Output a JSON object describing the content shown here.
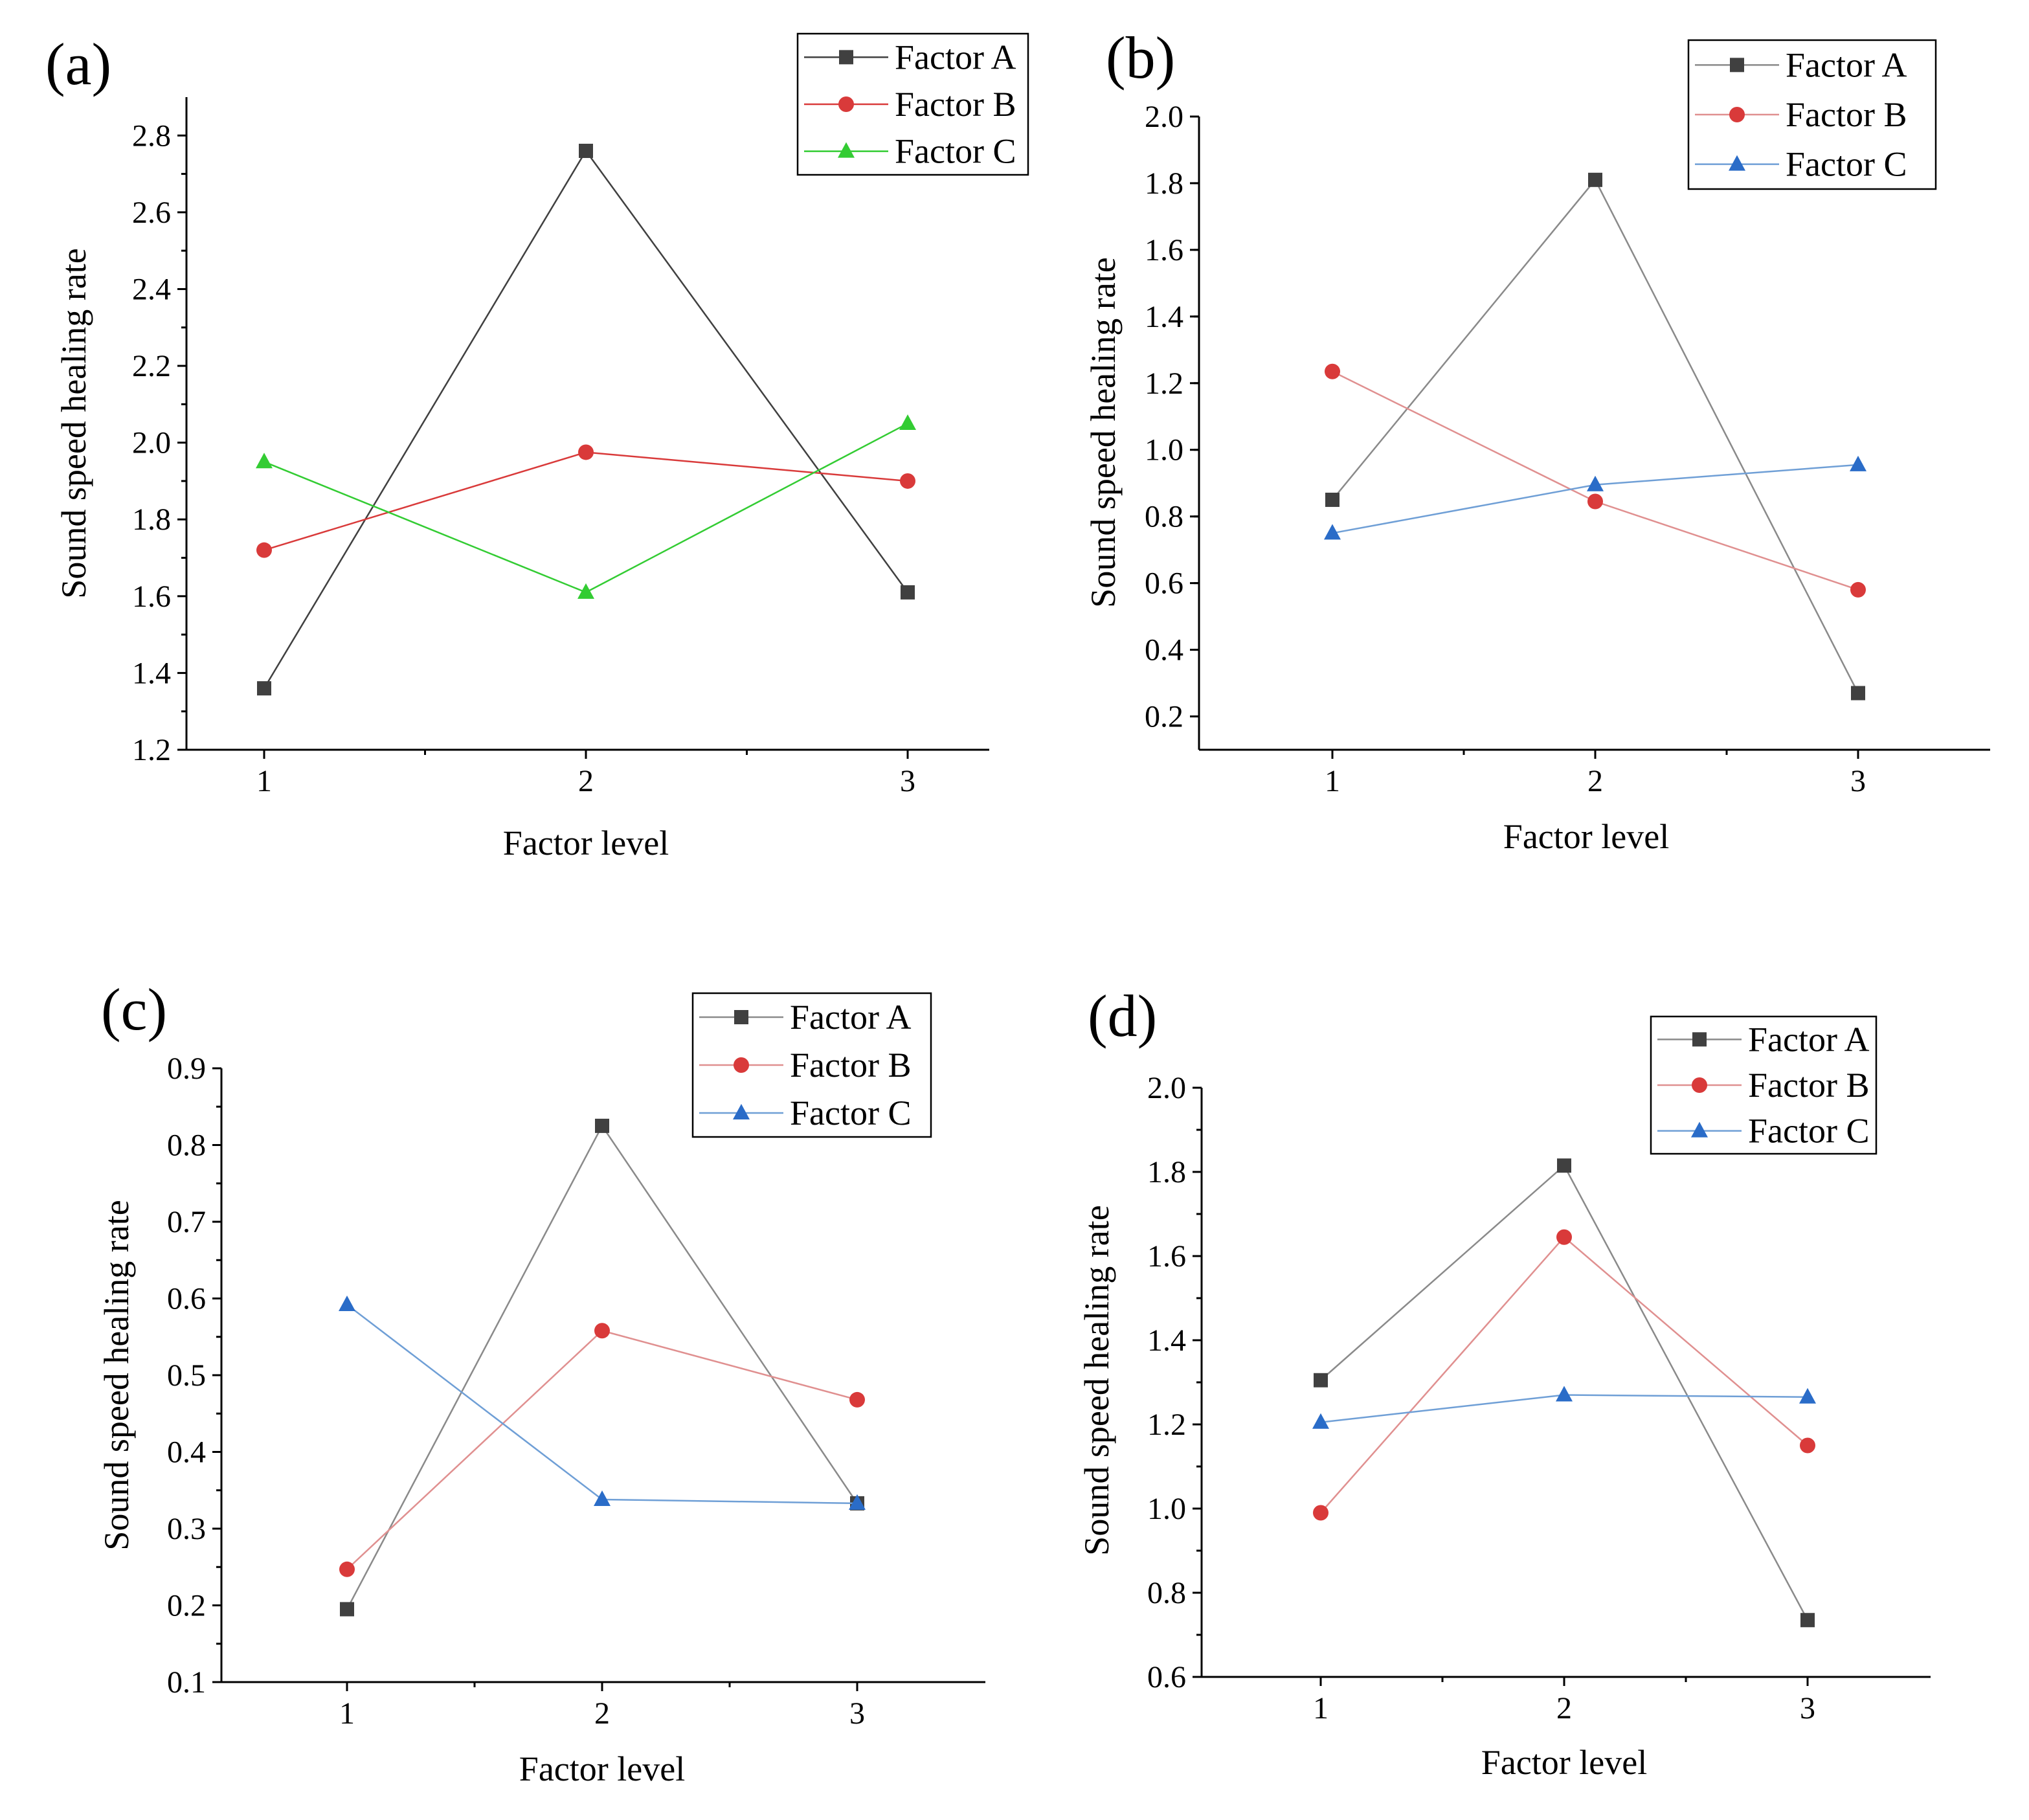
{
  "colors": {
    "factor_a": "#404040",
    "factor_b": "#d93a3a",
    "factor_c_panel_a": "#33cc33",
    "factor_c": "#2a6cc8",
    "factor_a_line": "#8a8a8a",
    "factor_b_line": "#e09090",
    "factor_c_line": "#6f9fd6"
  },
  "chart_data": [
    {
      "panel": "(a)",
      "type": "line",
      "xlabel": "Factor level",
      "ylabel": "Sound speed healing rate",
      "x": [
        1,
        2,
        3
      ],
      "x_ticks": [
        "1",
        "2",
        "3"
      ],
      "ylim": [
        1.2,
        2.9
      ],
      "y_ticks": [
        "1.2",
        "1.4",
        "1.6",
        "1.8",
        "2.0",
        "2.2",
        "2.4",
        "2.6",
        "2.8"
      ],
      "legend_position": "top-right",
      "series": [
        {
          "name": "Factor A",
          "marker": "square",
          "values": [
            1.36,
            2.76,
            1.61
          ]
        },
        {
          "name": "Factor B",
          "marker": "circle",
          "values": [
            1.72,
            1.975,
            1.9
          ]
        },
        {
          "name": "Factor C",
          "marker": "triangle",
          "values": [
            1.95,
            1.61,
            2.05
          ]
        }
      ]
    },
    {
      "panel": "(b)",
      "type": "line",
      "xlabel": "Factor level",
      "ylabel": "Sound speed healing rate",
      "x": [
        1,
        2,
        3
      ],
      "x_ticks": [
        "1",
        "2",
        "3"
      ],
      "ylim": [
        0.1,
        2.0
      ],
      "y_ticks": [
        "0.2",
        "0.4",
        "0.6",
        "0.8",
        "1.0",
        "1.2",
        "1.4",
        "1.6",
        "1.8",
        "2.0"
      ],
      "legend_position": "top-right",
      "series": [
        {
          "name": "Factor A",
          "marker": "square",
          "values": [
            0.85,
            1.81,
            0.27
          ]
        },
        {
          "name": "Factor B",
          "marker": "circle",
          "values": [
            1.235,
            0.845,
            0.58
          ]
        },
        {
          "name": "Factor C",
          "marker": "triangle",
          "values": [
            0.75,
            0.895,
            0.955
          ]
        }
      ]
    },
    {
      "panel": "(c)",
      "type": "line",
      "xlabel": "Factor level",
      "ylabel": "Sound speed healing rate",
      "x": [
        1,
        2,
        3
      ],
      "x_ticks": [
        "1",
        "2",
        "3"
      ],
      "ylim": [
        0.1,
        0.9
      ],
      "y_ticks": [
        "0.1",
        "0.2",
        "0.3",
        "0.4",
        "0.5",
        "0.6",
        "0.7",
        "0.8",
        "0.9"
      ],
      "legend_position": "top-right",
      "series": [
        {
          "name": "Factor A",
          "marker": "square",
          "values": [
            0.195,
            0.825,
            0.333
          ]
        },
        {
          "name": "Factor B",
          "marker": "circle",
          "values": [
            0.247,
            0.558,
            0.468
          ]
        },
        {
          "name": "Factor C",
          "marker": "triangle",
          "values": [
            0.592,
            0.338,
            0.333
          ]
        }
      ]
    },
    {
      "panel": "(d)",
      "type": "line",
      "xlabel": "Factor level",
      "ylabel": "Sound speed healing rate",
      "x": [
        1,
        2,
        3
      ],
      "x_ticks": [
        "1",
        "2",
        "3"
      ],
      "ylim": [
        0.6,
        2.0
      ],
      "y_ticks": [
        "0.6",
        "0.8",
        "1.0",
        "1.2",
        "1.4",
        "1.6",
        "1.8",
        "2.0"
      ],
      "legend_position": "top-right",
      "series": [
        {
          "name": "Factor A",
          "marker": "square",
          "values": [
            1.305,
            1.815,
            0.735
          ]
        },
        {
          "name": "Factor B",
          "marker": "circle",
          "values": [
            0.99,
            1.645,
            1.15
          ]
        },
        {
          "name": "Factor C",
          "marker": "triangle",
          "values": [
            1.205,
            1.27,
            1.265
          ]
        }
      ]
    }
  ]
}
